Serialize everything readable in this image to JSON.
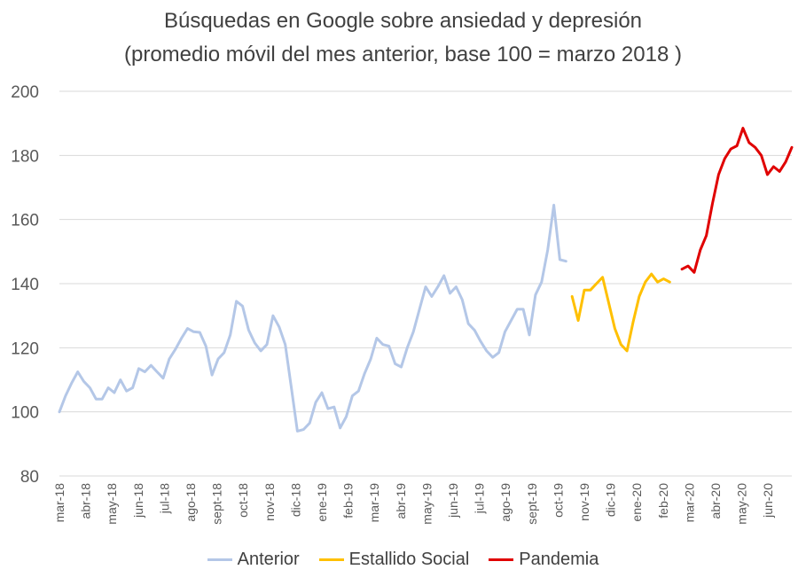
{
  "chart_data": {
    "type": "line",
    "title": "Búsquedas en Google sobre ansiedad y depresión",
    "subtitle": "(promedio móvil del mes anterior, base 100 = marzo 2018 )",
    "ylim": [
      80,
      200
    ],
    "yticks": [
      80,
      100,
      120,
      140,
      160,
      180,
      200
    ],
    "grid": true,
    "legend_position": "bottom",
    "x_tick_labels": [
      "mar-18",
      "abr-18",
      "may-18",
      "jun-18",
      "jul-18",
      "ago-18",
      "sept-18",
      "oct-18",
      "nov-18",
      "dic-18",
      "ene-19",
      "feb-19",
      "mar-19",
      "abr-19",
      "may-19",
      "jun-19",
      "jul-19",
      "ago-19",
      "sept-19",
      "oct-19",
      "nov-19",
      "dic-19",
      "ene-20",
      "feb-20",
      "mar-20",
      "abr-20",
      "may-20",
      "jun-20"
    ],
    "points_per_month": 4.3,
    "series": [
      {
        "name": "Anterior",
        "color": "#b4c7e7",
        "start": 0,
        "values": [
          100,
          105,
          109,
          112.5,
          109.5,
          107.5,
          104,
          104,
          107.5,
          106,
          110,
          106.5,
          107.5,
          113.5,
          112.5,
          114.5,
          112.5,
          110.5,
          116.5,
          119.5,
          123,
          126,
          125,
          124.8,
          120.5,
          111.5,
          116.5,
          118.5,
          124,
          134.5,
          133,
          125.5,
          121.5,
          119,
          121,
          130,
          126.5,
          121,
          107.5,
          94,
          94.5,
          96.5,
          103,
          106,
          101,
          101.5,
          95,
          98.5,
          105,
          106.5,
          112,
          116.5,
          123,
          121,
          120.5,
          115,
          114,
          120,
          125,
          132,
          139,
          136,
          139,
          142.5,
          137,
          139,
          135,
          127.5,
          125.5,
          122,
          119,
          117,
          118.5,
          125,
          128.5,
          132,
          132,
          124,
          136.5,
          140.5,
          150.5,
          164.5,
          147.5,
          147
        ]
      },
      {
        "name": "Estallido Social",
        "color": "#ffc000",
        "start": 84,
        "values": [
          136,
          128.5,
          138,
          138,
          140,
          142,
          134,
          126,
          121,
          119,
          128,
          136,
          140.5,
          143,
          140.5,
          141.5,
          140.5
        ]
      },
      {
        "name": "Pandemia",
        "color": "#e00000",
        "start": 102,
        "values": [
          144.5,
          145.5,
          143.5,
          150.5,
          155,
          165,
          174,
          179,
          182,
          183,
          188.5,
          184,
          182.5,
          180,
          174,
          176.5,
          175,
          178,
          182.5
        ]
      }
    ]
  }
}
